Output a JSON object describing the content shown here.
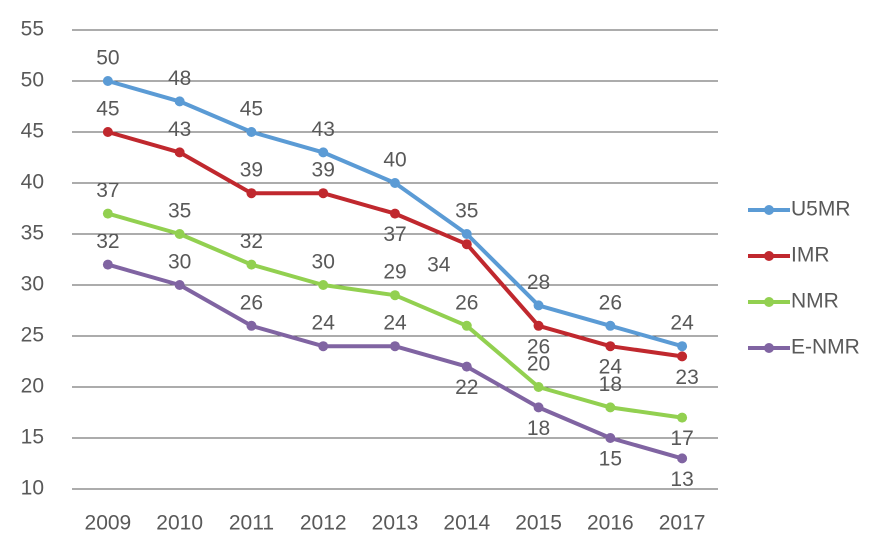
{
  "chart_data": {
    "type": "line",
    "categories": [
      "2009",
      "2010",
      "2011",
      "2012",
      "2013",
      "2014",
      "2015",
      "2016",
      "2017"
    ],
    "series": [
      {
        "name": "U5MR",
        "color": "#5b9bd5",
        "values": [
          50,
          48,
          45,
          43,
          40,
          35,
          28,
          26,
          24
        ]
      },
      {
        "name": "IMR",
        "color": "#c0282e",
        "values": [
          45,
          43,
          39,
          39,
          37,
          34,
          26,
          24,
          23
        ]
      },
      {
        "name": "NMR",
        "color": "#92d050",
        "values": [
          37,
          35,
          32,
          30,
          29,
          26,
          20,
          18,
          17
        ]
      },
      {
        "name": "E-NMR",
        "color": "#8064a2",
        "values": [
          32,
          30,
          26,
          24,
          24,
          22,
          18,
          15,
          13
        ]
      }
    ],
    "ylim": [
      10,
      55
    ],
    "yticks": [
      10,
      15,
      20,
      25,
      30,
      35,
      40,
      45,
      50,
      55
    ],
    "grid": true,
    "legend": "right"
  }
}
